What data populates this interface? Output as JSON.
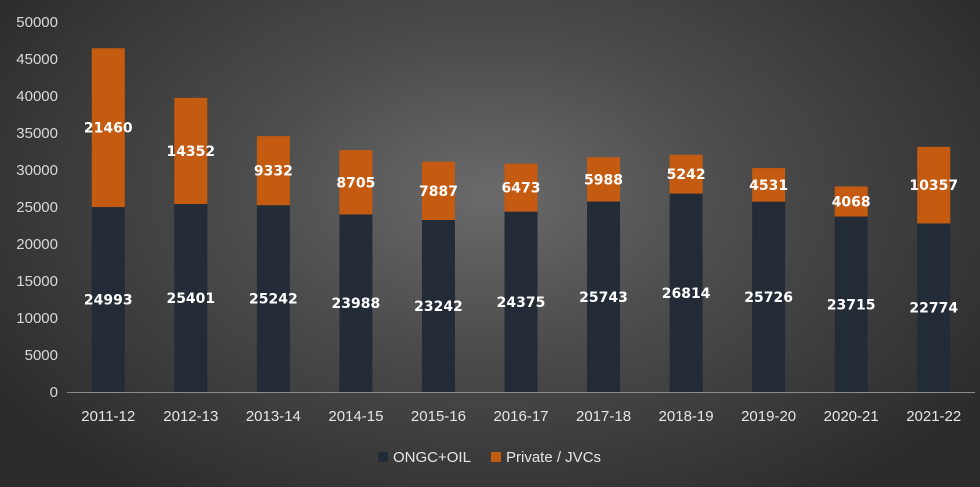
{
  "chart_data": {
    "type": "bar",
    "stacked": true,
    "title": "",
    "xlabel": "",
    "ylabel": "",
    "ylim": [
      0,
      50000
    ],
    "yticks": [
      0,
      5000,
      10000,
      15000,
      20000,
      25000,
      30000,
      35000,
      40000,
      45000,
      50000
    ],
    "grid": false,
    "legend_position": "bottom",
    "categories": [
      "2011-12",
      "2012-13",
      "2013-14",
      "2014-15",
      "2015-16",
      "2016-17",
      "2017-18",
      "2018-19",
      "2019-20",
      "2020-21",
      "2021-22"
    ],
    "series": [
      {
        "name": "ONGC+OIL",
        "color": "#232b37",
        "values": [
          24993,
          25401,
          25242,
          23988,
          23242,
          24375,
          25743,
          26814,
          25726,
          23715,
          22774
        ]
      },
      {
        "name": "Private / JVCs",
        "color": "#c55a11",
        "values": [
          21460,
          14352,
          9332,
          8705,
          7887,
          6473,
          5988,
          5242,
          4531,
          4068,
          10357
        ]
      }
    ]
  }
}
